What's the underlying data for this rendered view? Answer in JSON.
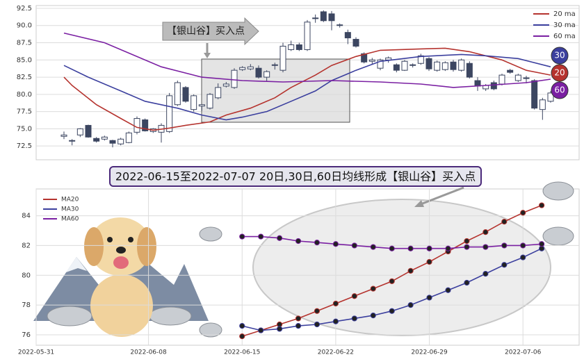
{
  "chart_data": [
    {
      "type": "candlestick",
      "annotation": "【银山谷】买入点",
      "ylim": [
        70.5,
        92.9
      ],
      "yticks": [
        72.5,
        {
          "value": 75,
          "label": "75.0"
        },
        77.5,
        {
          "value": 80,
          "label": "80.0"
        },
        82.5,
        {
          "value": 85,
          "label": "85.0"
        },
        87.5,
        {
          "value": 90,
          "label": "90.0"
        },
        92.5
      ],
      "grid": true,
      "legend": "upper right",
      "up_color": "#ffffff",
      "down_color": "#3c4661",
      "candles": [
        [
          73.9,
          74.6,
          73.5,
          74.1
        ],
        [
          73.3,
          73.5,
          72.6,
          73.2
        ],
        [
          74.1,
          75.1,
          73.8,
          75.0
        ],
        [
          75.5,
          75.6,
          73.7,
          73.8
        ],
        [
          73.6,
          73.8,
          73.0,
          73.2
        ],
        [
          73.5,
          74.0,
          73.3,
          73.8
        ],
        [
          73.3,
          73.4,
          72.3,
          72.9
        ],
        [
          72.8,
          73.7,
          72.6,
          73.5
        ],
        [
          73.0,
          74.6,
          72.9,
          74.4
        ],
        [
          74.5,
          76.8,
          74.2,
          76.5
        ],
        [
          76.3,
          76.5,
          74.6,
          74.7
        ],
        [
          74.6,
          75.1,
          74.4,
          75.0
        ],
        [
          74.5,
          75.8,
          73.0,
          75.5
        ],
        [
          74.6,
          80.2,
          74.4,
          79.8
        ],
        [
          78.5,
          82.0,
          78.3,
          81.7
        ],
        [
          81.0,
          81.2,
          78.8,
          79.0
        ],
        [
          77.8,
          80.0,
          77.5,
          79.8
        ],
        [
          78.3,
          78.6,
          77.6,
          78.5
        ],
        [
          78.0,
          80.2,
          77.8,
          80.0
        ],
        [
          79.5,
          81.6,
          79.3,
          81.0
        ],
        [
          81.2,
          81.8,
          81.0,
          81.5
        ],
        [
          81.0,
          83.8,
          80.8,
          83.5
        ],
        [
          83.6,
          84.1,
          83.4,
          83.9
        ],
        [
          83.7,
          84.4,
          83.5,
          84.0
        ],
        [
          83.8,
          84.2,
          82.3,
          82.5
        ],
        [
          82.5,
          83.5,
          81.9,
          83.3
        ],
        [
          84.2,
          84.6,
          83.6,
          84.3
        ],
        [
          83.5,
          87.5,
          83.2,
          87.0
        ],
        [
          86.5,
          87.8,
          86.3,
          87.2
        ],
        [
          87.2,
          87.5,
          86.3,
          86.5
        ],
        [
          86.5,
          90.8,
          86.3,
          90.5
        ],
        [
          91.0,
          91.6,
          90.4,
          91.1
        ],
        [
          92.0,
          92.2,
          90.5,
          90.7
        ],
        [
          91.7,
          92.1,
          89.3,
          90.7
        ],
        [
          90.0,
          90.3,
          89.7,
          90.1
        ],
        [
          89.0,
          89.4,
          87.3,
          88.2
        ],
        [
          88.0,
          88.3,
          86.8,
          87.0
        ],
        [
          85.9,
          86.1,
          84.5,
          84.7
        ],
        [
          84.8,
          85.3,
          84.3,
          85.0
        ],
        [
          83.8,
          85.2,
          83.5,
          85.0
        ],
        [
          85.0,
          85.5,
          84.6,
          85.3
        ],
        [
          84.3,
          84.5,
          83.2,
          83.5
        ],
        [
          83.5,
          85.0,
          83.4,
          84.8
        ],
        [
          84.2,
          84.5,
          83.9,
          84.3
        ],
        [
          84.5,
          85.9,
          84.3,
          85.6
        ],
        [
          85.2,
          85.4,
          83.4,
          83.7
        ],
        [
          83.5,
          84.9,
          83.3,
          84.7
        ],
        [
          83.6,
          84.8,
          83.4,
          84.6
        ],
        [
          84.7,
          85.0,
          83.3,
          83.6
        ],
        [
          83.5,
          85.2,
          83.3,
          85.0
        ],
        [
          84.5,
          84.8,
          82.3,
          82.5
        ],
        [
          82.0,
          82.5,
          80.5,
          81.2
        ],
        [
          80.8,
          81.5,
          80.5,
          81.3
        ],
        [
          81.7,
          82.0,
          80.6,
          80.8
        ],
        [
          81.5,
          83.0,
          81.3,
          82.8
        ],
        [
          83.5,
          83.7,
          83.0,
          83.2
        ],
        [
          82.0,
          83.0,
          81.8,
          82.8
        ],
        [
          82.4,
          82.7,
          81.6,
          82.3
        ],
        [
          82.0,
          82.2,
          77.8,
          78.0
        ],
        [
          77.8,
          79.5,
          76.3,
          79.2
        ],
        [
          79.0,
          80.5,
          78.8,
          80.2
        ]
      ],
      "series": [
        {
          "name": "20 ma",
          "badge": "20",
          "color": "#b5332e",
          "x": [
            0,
            1,
            4,
            7,
            9,
            11,
            13,
            15,
            18,
            20,
            23,
            26,
            28,
            31,
            33,
            36,
            39,
            44,
            47,
            50,
            54,
            57,
            60
          ],
          "values": [
            82.5,
            81.3,
            78.5,
            76.5,
            75.2,
            74.8,
            75.1,
            75.5,
            76,
            77,
            78,
            79.5,
            81,
            82.8,
            84.2,
            85.5,
            86.4,
            86.6,
            86.7,
            86.2,
            85,
            83.5,
            82.8
          ]
        },
        {
          "name": "30 ma",
          "badge": "30",
          "color": "#3b3f9e",
          "x": [
            0,
            3,
            7,
            10,
            14,
            17,
            20,
            22,
            25,
            28,
            31,
            33,
            36,
            39,
            44,
            49,
            52,
            56,
            60
          ],
          "values": [
            84.2,
            82.5,
            80.5,
            79,
            78,
            77,
            76.3,
            76.7,
            77.5,
            79,
            80.5,
            82,
            83.5,
            84.8,
            85.5,
            85.8,
            85.6,
            85.2,
            84
          ]
        },
        {
          "name": "60 ma",
          "badge": "60",
          "color": "#7a1fa2",
          "x": [
            0,
            5,
            12,
            17,
            22,
            27,
            33,
            39,
            44,
            48,
            52,
            57,
            60
          ],
          "values": [
            88.9,
            87.5,
            84,
            82.5,
            82,
            81.8,
            82,
            81.8,
            81.5,
            81,
            81.3,
            81.7,
            82.2
          ]
        }
      ]
    },
    {
      "type": "line",
      "title": "2022-06-15至2022-07-07 20日,30日,60日均线形成【银山谷】买入点",
      "xlim": [
        "2022-05-31",
        "2022-07-11"
      ],
      "xticks": [
        "2022-05-31",
        "2022-06-08",
        "2022-06-15",
        "2022-06-22",
        "2022-06-29",
        "2022-07-06"
      ],
      "ylim": [
        75.3,
        85.8
      ],
      "yticks": [
        76,
        78,
        80,
        82,
        84
      ],
      "grid": true,
      "legend": "upper left",
      "x": [
        "2022-06-15",
        "2022-06-16",
        "2022-06-17",
        "2022-06-20",
        "2022-06-21",
        "2022-06-22",
        "2022-06-23",
        "2022-06-24",
        "2022-06-27",
        "2022-06-28",
        "2022-06-29",
        "2022-06-30",
        "2022-07-01",
        "2022-07-04",
        "2022-07-05",
        "2022-07-06",
        "2022-07-07"
      ],
      "series": [
        {
          "name": "MA20",
          "color": "#b5332e",
          "values": [
            75.9,
            76.3,
            76.7,
            77.1,
            77.6,
            78.1,
            78.6,
            79.1,
            79.6,
            80.3,
            80.9,
            81.6,
            82.3,
            82.9,
            83.6,
            84.2,
            84.7
          ]
        },
        {
          "name": "MA30",
          "color": "#3b3f9e",
          "values": [
            76.6,
            76.3,
            76.4,
            76.6,
            76.7,
            76.9,
            77.1,
            77.3,
            77.6,
            78.0,
            78.5,
            79.0,
            79.5,
            80.1,
            80.7,
            81.2,
            81.8
          ]
        },
        {
          "name": "MA60",
          "color": "#7a1fa2",
          "values": [
            82.6,
            82.6,
            82.5,
            82.3,
            82.2,
            82.1,
            82.0,
            81.9,
            81.8,
            81.8,
            81.8,
            81.8,
            81.9,
            81.9,
            82.0,
            82.0,
            82.1
          ]
        }
      ]
    }
  ]
}
